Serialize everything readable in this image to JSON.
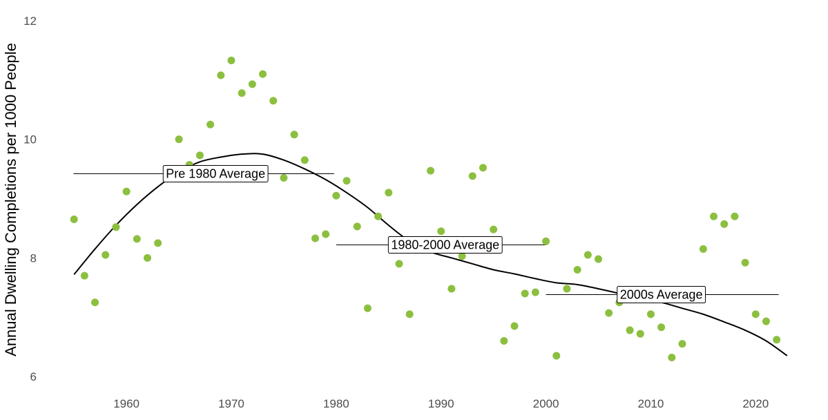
{
  "chart_data": {
    "type": "scatter",
    "title": "",
    "xlabel": "",
    "ylabel": "Annual Dwelling Completions per 1000 People",
    "xlim": [
      1954,
      2024
    ],
    "ylim": [
      6,
      12
    ],
    "x_ticks": [
      1960,
      1970,
      1980,
      1990,
      2000,
      2010,
      2020
    ],
    "y_ticks": [
      6,
      8,
      10,
      12
    ],
    "x_tick_labels": [
      "1960",
      "1970",
      "1980",
      "1990",
      "2000",
      "2010",
      "2020"
    ],
    "y_tick_labels": [
      "6",
      "8",
      "10",
      "12"
    ],
    "grid": false,
    "legend": "none",
    "colors": {
      "points": "#8cbf3f",
      "trend": "#000000",
      "average": "#000000"
    },
    "points": {
      "x": [
        1955,
        1956,
        1957,
        1958,
        1959,
        1960,
        1961,
        1962,
        1963,
        1964,
        1965,
        1966,
        1967,
        1968,
        1969,
        1970,
        1971,
        1972,
        1973,
        1974,
        1975,
        1976,
        1977,
        1978,
        1979,
        1980,
        1981,
        1982,
        1983,
        1984,
        1985,
        1986,
        1987,
        1988,
        1989,
        1990,
        1991,
        1992,
        1993,
        1994,
        1995,
        1996,
        1997,
        1998,
        1999,
        2000,
        2001,
        2002,
        2003,
        2004,
        2005,
        2006,
        2007,
        2008,
        2009,
        2010,
        2011,
        2012,
        2013,
        2014,
        2015,
        2016,
        2017,
        2018,
        2019,
        2020,
        2021,
        2022
      ],
      "y": [
        8.65,
        7.7,
        7.25,
        8.05,
        8.52,
        9.12,
        8.32,
        8.0,
        8.25,
        9.42,
        10.0,
        9.57,
        9.73,
        10.25,
        11.08,
        11.33,
        10.78,
        10.93,
        11.1,
        10.65,
        9.35,
        10.08,
        9.65,
        8.33,
        8.4,
        9.05,
        9.3,
        8.53,
        7.15,
        8.7,
        9.1,
        7.9,
        7.05,
        8.15,
        9.47,
        8.45,
        7.48,
        8.03,
        9.38,
        9.52,
        8.48,
        6.6,
        6.85,
        7.4,
        7.42,
        8.28,
        6.35,
        7.48,
        7.8,
        8.05,
        7.98,
        7.07,
        7.25,
        6.78,
        6.72,
        7.05,
        6.83,
        6.32,
        6.55,
        7.35,
        8.15,
        8.7,
        8.57,
        8.7,
        7.92,
        7.05,
        6.93,
        6.62
      ]
    },
    "trend": {
      "x": [
        1955,
        1957,
        1959,
        1961,
        1963,
        1965,
        1967,
        1969,
        1971,
        1973,
        1975,
        1977,
        1979,
        1981,
        1983,
        1985,
        1987,
        1989,
        1991,
        1993,
        1995,
        1997,
        1999,
        2001,
        2003,
        2005,
        2007,
        2009,
        2011,
        2013,
        2015,
        2017,
        2019,
        2021,
        2023
      ],
      "y": [
        7.72,
        8.15,
        8.55,
        8.9,
        9.2,
        9.45,
        9.62,
        9.7,
        9.75,
        9.75,
        9.65,
        9.5,
        9.32,
        9.1,
        8.85,
        8.55,
        8.28,
        8.1,
        8.0,
        7.9,
        7.8,
        7.73,
        7.65,
        7.58,
        7.55,
        7.48,
        7.4,
        7.32,
        7.25,
        7.15,
        7.05,
        6.92,
        6.78,
        6.6,
        6.35
      ]
    },
    "averages": [
      {
        "label": "Pre 1980 Average",
        "start": 1954.95,
        "end": 1979.8,
        "value": 9.42,
        "label_x": 1968.5
      },
      {
        "label": "1980-2000 Average",
        "start": 1980,
        "end": 2000,
        "value": 8.22,
        "label_x": 1990.4
      },
      {
        "label": "2000s Average",
        "start": 2000,
        "end": 2022.2,
        "value": 7.38,
        "label_x": 2011.0
      }
    ]
  }
}
